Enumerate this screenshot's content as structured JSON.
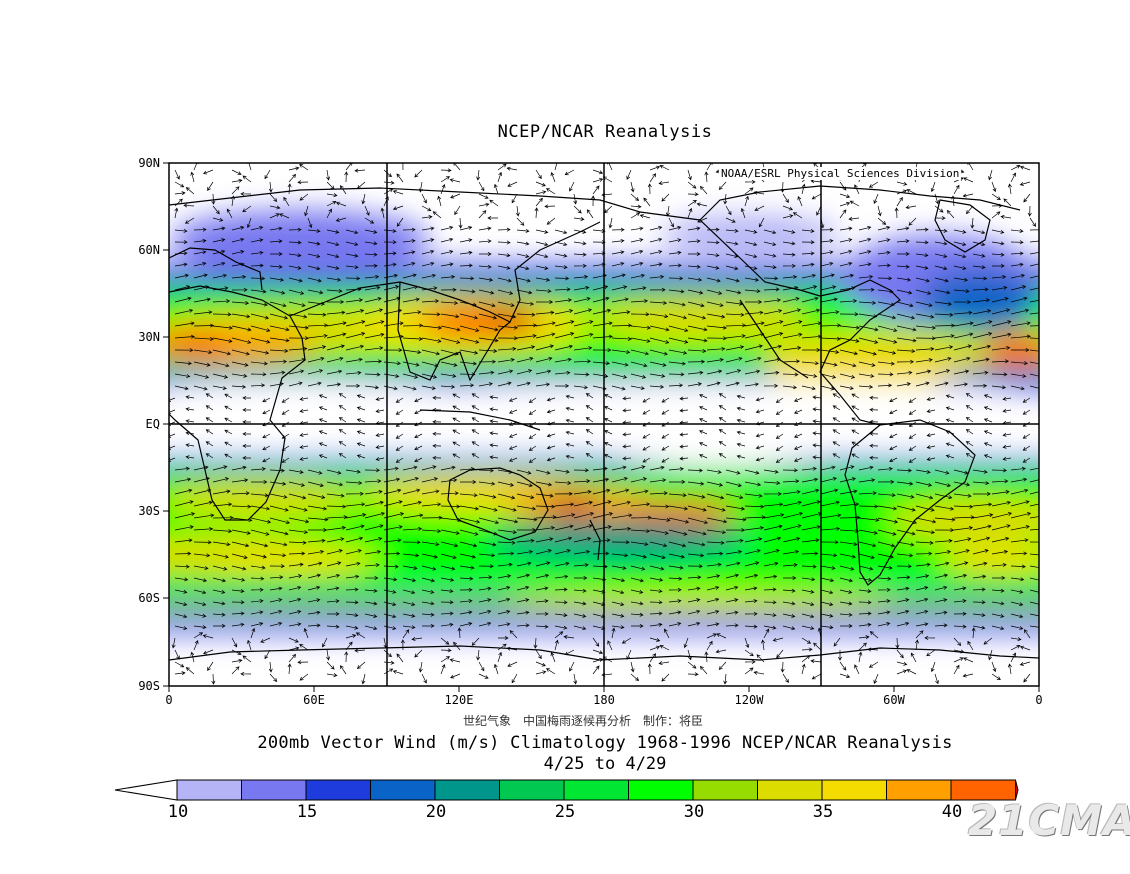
{
  "top_title": "NCEP/NCAR Reanalysis",
  "credit": "NOAA/ESRL Physical Sciences Division",
  "lat_labels": [
    "90N",
    "60N",
    "30N",
    "EQ",
    "30S",
    "60S",
    "90S"
  ],
  "lon_labels": [
    "0",
    "60E",
    "120E",
    "180",
    "120W",
    "60W",
    "0"
  ],
  "subtitle_cn": "世纪气象　中国梅雨逐候再分析　制作：将臣",
  "subtitle": "200mb Vector Wind (m/s) Climatology 1968-1996 NCEP/NCAR Reanalysis",
  "period": "4/25  to 4/29",
  "colorbar": {
    "labels": [
      "10",
      "15",
      "20",
      "25",
      "30",
      "35",
      "40"
    ],
    "colors": [
      "#ffffff",
      "#b4b4f6",
      "#7878f0",
      "#1e3cdc",
      "#0a64c8",
      "#00968c",
      "#00c850",
      "#00e632",
      "#00ff00",
      "#96dc00",
      "#dcdc00",
      "#f5dc00",
      "#ffa000",
      "#ff6400",
      "#d20000"
    ]
  },
  "watermark": "21CMA"
}
